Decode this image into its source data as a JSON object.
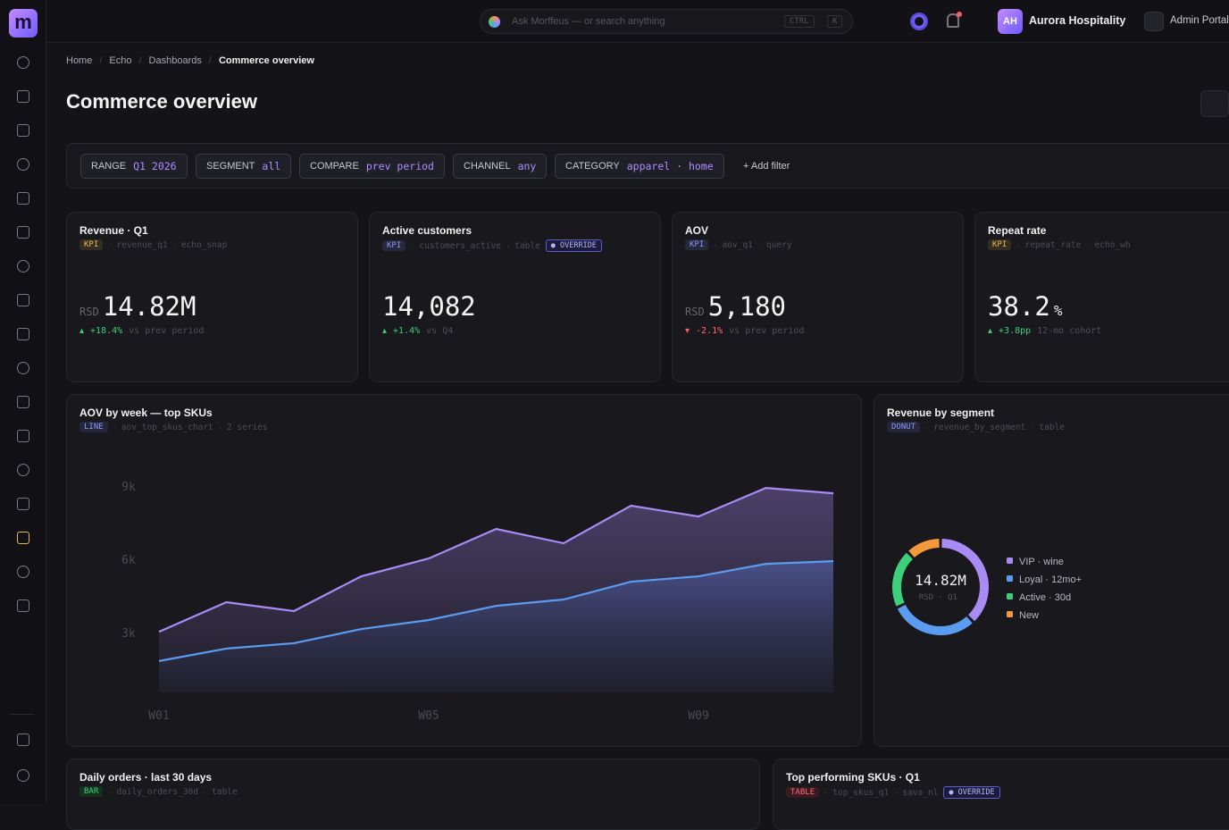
{
  "topbar": {
    "search_placeholder": "Ask Morffeus — or search anything",
    "shortcut": [
      "CTRL",
      "K"
    ],
    "avatar": "AH",
    "org": "Aurora Hospitality",
    "portal": "Admin Portal"
  },
  "breadcrumb": [
    "Home",
    "Echo",
    "Dashboards",
    "Commerce overview"
  ],
  "title": "Commerce overview",
  "filters": [
    {
      "key": "RANGE",
      "value": "Q1 2026"
    },
    {
      "key": "SEGMENT",
      "value": "all"
    },
    {
      "key": "COMPARE",
      "value": "prev period"
    },
    {
      "key": "CHANNEL",
      "value": "any"
    },
    {
      "key": "CATEGORY",
      "value": "apparel · home"
    }
  ],
  "add_filter": "Add filter",
  "kpis": [
    {
      "title": "Revenue · Q1",
      "tag": "KPI",
      "tag_color": "#e8b84a",
      "meta": [
        "revenue_q1",
        "echo_snap"
      ],
      "unit": "RSD",
      "value": "14.82M",
      "delta": "+18.4%",
      "compare": "vs prev period"
    },
    {
      "title": "Active customers",
      "tag": "KPI",
      "tag_color": "#8f96ff",
      "meta": [
        "customers_active",
        "table"
      ],
      "override": "OVERRIDE",
      "value": "14,082",
      "delta": "+1.4%",
      "compare": "vs Q4"
    },
    {
      "title": "AOV",
      "tag": "KPI",
      "tag_color": "#8f96ff",
      "meta": [
        "aov_q1",
        "query"
      ],
      "unit": "RSD",
      "value": "5,180",
      "delta": "-2.1%",
      "compare": "vs prev period"
    },
    {
      "title": "Repeat rate",
      "tag": "KPI",
      "tag_color": "#e8b84a",
      "meta": [
        "repeat_rate",
        "echo_wh"
      ],
      "value": "38.2",
      "suffix": "%",
      "delta": "+3.8pp",
      "compare": "12-mo cohort"
    }
  ],
  "aov_chart": {
    "type": "line",
    "title": "AOV by week — top SKUs",
    "tag": "LINE",
    "meta": [
      "aov_top_skus_chart",
      "2 series"
    ],
    "categories": [
      "W01",
      null,
      null,
      null,
      "W05",
      null,
      null,
      null,
      "W09",
      null,
      null
    ],
    "series": [
      {
        "color": "#a98bf5",
        "values": [
          3070,
          4280,
          3915,
          5340,
          6070,
          7280,
          6695,
          8230,
          7790,
          8960,
          8740
        ]
      },
      {
        "color": "#5b9cf0",
        "values": [
          1870,
          2380,
          2600,
          3180,
          3550,
          4130,
          4390,
          5120,
          5340,
          5850,
          5960
        ]
      }
    ],
    "ylim": [
      0,
      10000
    ],
    "yticks": [
      {
        "value": 3000,
        "label": "3k"
      },
      {
        "value": 6000,
        "label": "6k"
      },
      {
        "value": 9000,
        "label": "9k"
      }
    ],
    "grid": false
  },
  "segment_chart": {
    "type": "pie",
    "title": "Revenue by segment",
    "tag": "DONUT",
    "meta": [
      "revenue_by_segment",
      "table"
    ],
    "center_value": "14.82M",
    "center_sub": [
      "RSD",
      "Q1"
    ],
    "categories": [
      "VIP · wine",
      "Loyal · 12mo+",
      "Active · 30d",
      "New"
    ],
    "values": [
      38,
      30,
      20,
      12
    ],
    "colors": [
      "#a98bf5",
      "#5b9cf0",
      "#3ecf7a",
      "#f59a3c"
    ]
  },
  "orders_panel": {
    "title": "Daily orders · last 30 days",
    "tag": "BAR",
    "meta": [
      "daily_orders_30d",
      "table"
    ]
  },
  "skus_panel": {
    "title": "Top performing SKUs · Q1",
    "tag": "TABLE",
    "meta": [
      "top_skus_q1",
      "sava_nl"
    ],
    "override": "OVERRIDE"
  }
}
